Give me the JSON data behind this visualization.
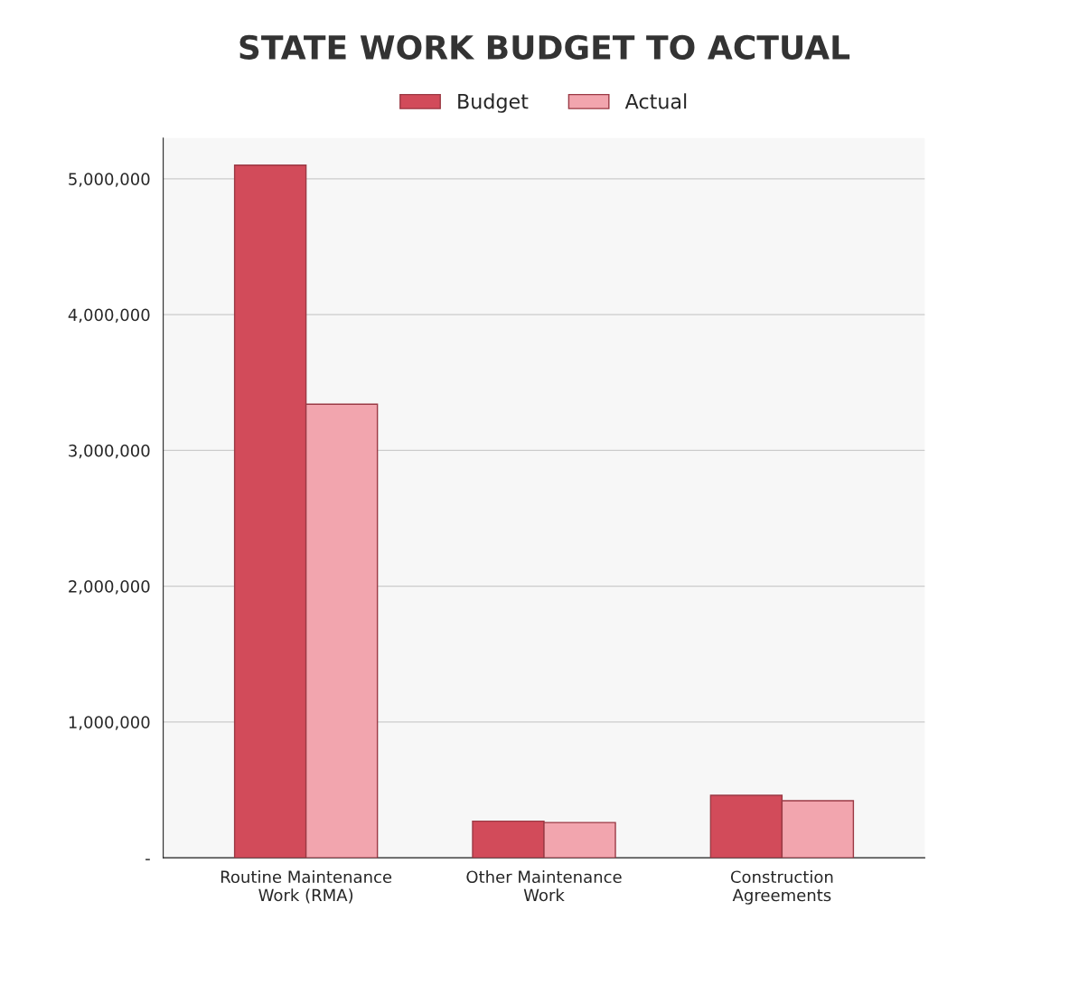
{
  "chart_data": {
    "type": "bar",
    "title": "STATE WORK BUDGET TO ACTUAL",
    "categories": [
      "Routine Maintenance\nWork (RMA)",
      "Other Maintenance\nWork",
      "Construction\nAgreements"
    ],
    "series": [
      {
        "name": "Budget",
        "color": "#d24b5a",
        "values": [
          5100000,
          270000,
          460000
        ]
      },
      {
        "name": "Actual",
        "color": "#f2a5ae",
        "values": [
          3340000,
          260000,
          420000
        ]
      }
    ],
    "ylim": [
      0,
      5300000
    ],
    "yticks": [
      {
        "value": 0,
        "label": "-"
      },
      {
        "value": 1000000,
        "label": "1,000,000"
      },
      {
        "value": 2000000,
        "label": "2,000,000"
      },
      {
        "value": 3000000,
        "label": "3,000,000"
      },
      {
        "value": 4000000,
        "label": "4,000,000"
      },
      {
        "value": 5000000,
        "label": "5,000,000"
      }
    ],
    "grid": "y",
    "legend": "top"
  }
}
